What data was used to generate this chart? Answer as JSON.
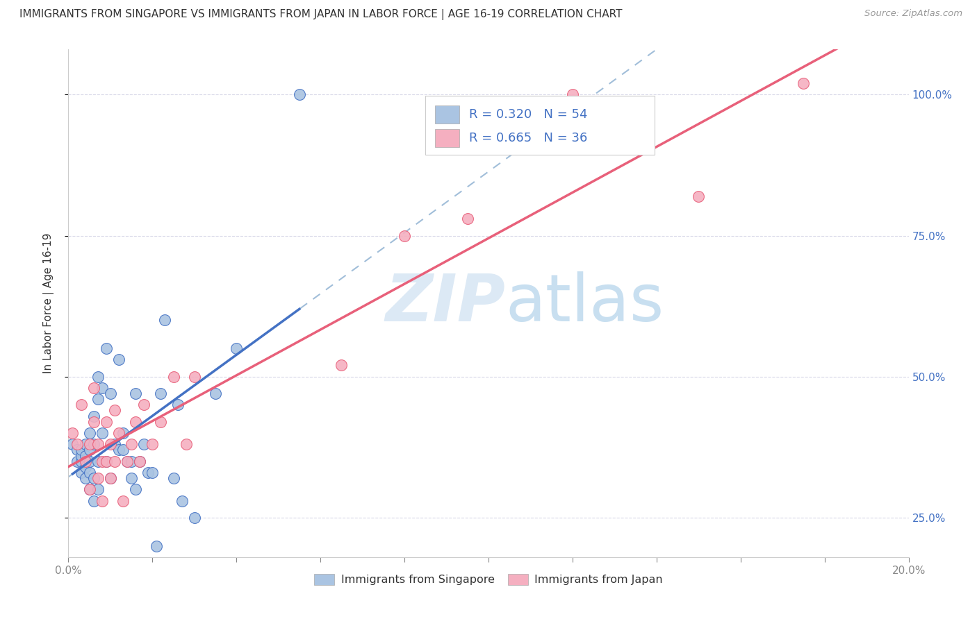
{
  "title": "IMMIGRANTS FROM SINGAPORE VS IMMIGRANTS FROM JAPAN IN LABOR FORCE | AGE 16-19 CORRELATION CHART",
  "source": "Source: ZipAtlas.com",
  "ylabel": "In Labor Force | Age 16-19",
  "x_min": 0.0,
  "x_max": 0.2,
  "y_min": 0.18,
  "y_max": 1.08,
  "y_tick_positions": [
    0.25,
    0.5,
    0.75,
    1.0
  ],
  "y_tick_labels": [
    "25.0%",
    "50.0%",
    "75.0%",
    "100.0%"
  ],
  "legend_r1": "R = 0.320",
  "legend_n1": "N = 54",
  "legend_r2": "R = 0.665",
  "legend_n2": "N = 36",
  "color_singapore": "#aac4e2",
  "color_japan": "#f5afc0",
  "color_singapore_line": "#4472c4",
  "color_japan_line": "#e8607a",
  "color_dashed": "#8aaed0",
  "watermark_zip": "ZIP",
  "watermark_atlas": "atlas",
  "singapore_x": [
    0.001,
    0.002,
    0.002,
    0.003,
    0.003,
    0.003,
    0.003,
    0.004,
    0.004,
    0.004,
    0.004,
    0.005,
    0.005,
    0.005,
    0.005,
    0.005,
    0.006,
    0.006,
    0.006,
    0.006,
    0.007,
    0.007,
    0.007,
    0.007,
    0.008,
    0.008,
    0.009,
    0.009,
    0.01,
    0.01,
    0.011,
    0.012,
    0.012,
    0.013,
    0.013,
    0.014,
    0.015,
    0.015,
    0.016,
    0.016,
    0.017,
    0.018,
    0.019,
    0.02,
    0.021,
    0.022,
    0.023,
    0.025,
    0.026,
    0.027,
    0.03,
    0.035,
    0.04,
    0.055
  ],
  "singapore_y": [
    0.38,
    0.35,
    0.37,
    0.33,
    0.35,
    0.36,
    0.37,
    0.32,
    0.34,
    0.36,
    0.38,
    0.3,
    0.33,
    0.35,
    0.37,
    0.4,
    0.28,
    0.32,
    0.38,
    0.43,
    0.3,
    0.35,
    0.46,
    0.5,
    0.4,
    0.48,
    0.35,
    0.55,
    0.32,
    0.47,
    0.38,
    0.53,
    0.37,
    0.4,
    0.37,
    0.35,
    0.35,
    0.32,
    0.3,
    0.47,
    0.35,
    0.38,
    0.33,
    0.33,
    0.2,
    0.47,
    0.6,
    0.32,
    0.45,
    0.28,
    0.25,
    0.47,
    0.55,
    1.0
  ],
  "japan_x": [
    0.001,
    0.002,
    0.003,
    0.004,
    0.005,
    0.005,
    0.006,
    0.006,
    0.007,
    0.007,
    0.008,
    0.008,
    0.009,
    0.009,
    0.01,
    0.01,
    0.011,
    0.011,
    0.012,
    0.013,
    0.014,
    0.015,
    0.016,
    0.017,
    0.018,
    0.02,
    0.022,
    0.025,
    0.028,
    0.03,
    0.065,
    0.08,
    0.095,
    0.12,
    0.15,
    0.175
  ],
  "japan_y": [
    0.4,
    0.38,
    0.45,
    0.35,
    0.38,
    0.3,
    0.42,
    0.48,
    0.32,
    0.38,
    0.28,
    0.35,
    0.42,
    0.35,
    0.32,
    0.38,
    0.44,
    0.35,
    0.4,
    0.28,
    0.35,
    0.38,
    0.42,
    0.35,
    0.45,
    0.38,
    0.42,
    0.5,
    0.38,
    0.5,
    0.52,
    0.75,
    0.78,
    1.0,
    0.82,
    1.02
  ]
}
